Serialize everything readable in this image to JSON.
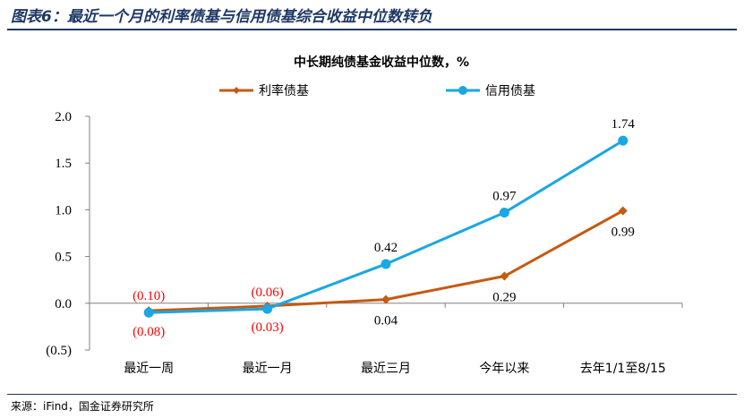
{
  "figure": {
    "title": "图表6：最近一个月的利率债基与信用债基综合收益中位数转负",
    "source": "来源：iFind，国金证券研究所"
  },
  "chart_data": {
    "type": "line",
    "title": "中长期纯债基金收益中位数，%",
    "categories": [
      "最近一周",
      "最近一月",
      "最近三月",
      "今年以来",
      "去年1/1至8/15"
    ],
    "ylim": [
      -0.5,
      2.0
    ],
    "yticks": [
      -0.5,
      0.0,
      0.5,
      1.0,
      1.5,
      2.0
    ],
    "ytick_labels": [
      "(0.5)",
      "0.0",
      "0.5",
      "1.0",
      "1.5",
      "2.0"
    ],
    "legend_position": "top",
    "grid": false,
    "series": [
      {
        "name": "利率债基",
        "color": "#c55a11",
        "marker": "diamond",
        "values": [
          -0.08,
          -0.03,
          0.04,
          0.29,
          0.99
        ],
        "labels": [
          "(0.08)",
          "(0.03)",
          "0.04",
          "0.29",
          "0.99"
        ],
        "label_colors": [
          "#ff0000",
          "#ff0000",
          "#000000",
          "#000000",
          "#000000"
        ],
        "label_side": [
          "below",
          "below",
          "below",
          "below",
          "below"
        ]
      },
      {
        "name": "信用债基",
        "color": "#1aa7e3",
        "marker": "circle",
        "values": [
          -0.1,
          -0.06,
          0.42,
          0.97,
          1.74
        ],
        "labels": [
          "(0.10)",
          "(0.06)",
          "0.42",
          "0.97",
          "1.74"
        ],
        "label_colors": [
          "#ff0000",
          "#ff0000",
          "#000000",
          "#000000",
          "#000000"
        ],
        "label_side": [
          "above",
          "above",
          "above",
          "above",
          "above"
        ]
      }
    ]
  }
}
